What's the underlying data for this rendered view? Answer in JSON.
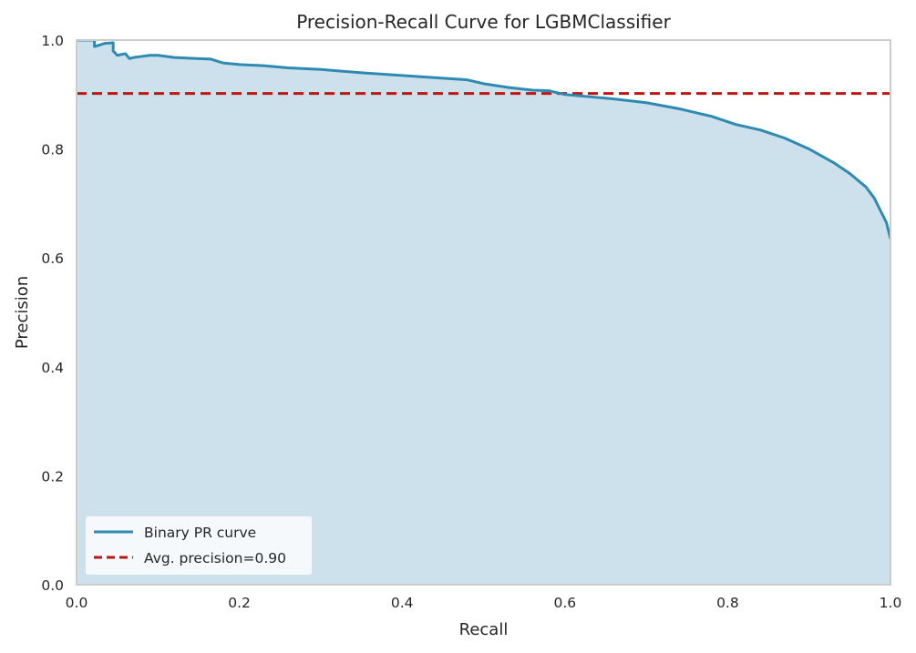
{
  "chart_data": {
    "type": "area",
    "title": "Precision-Recall Curve for LGBMClassifier",
    "xlabel": "Recall",
    "ylabel": "Precision",
    "xlim": [
      0.0,
      1.0
    ],
    "ylim": [
      0.0,
      1.0
    ],
    "xticks": [
      "0.0",
      "0.2",
      "0.4",
      "0.6",
      "0.8",
      "1.0"
    ],
    "yticks": [
      "0.0",
      "0.2",
      "0.4",
      "0.6",
      "0.8",
      "1.0"
    ],
    "grid": false,
    "legend": {
      "position": "lower-left",
      "entries": [
        "Binary PR curve",
        "Avg. precision=0.90"
      ]
    },
    "series": [
      {
        "name": "Binary PR curve",
        "color": "#2e8ab3",
        "fill_color": "#cce1ec",
        "x": [
          0.0,
          0.022,
          0.022,
          0.035,
          0.045,
          0.045,
          0.05,
          0.06,
          0.065,
          0.07,
          0.08,
          0.09,
          0.1,
          0.12,
          0.15,
          0.165,
          0.18,
          0.2,
          0.23,
          0.26,
          0.3,
          0.35,
          0.4,
          0.45,
          0.48,
          0.5,
          0.53,
          0.56,
          0.58,
          0.6,
          0.63,
          0.66,
          0.7,
          0.74,
          0.78,
          0.81,
          0.84,
          0.87,
          0.9,
          0.93,
          0.95,
          0.97,
          0.98,
          0.99,
          0.995,
          1.0
        ],
        "y": [
          1.0,
          1.0,
          0.988,
          0.994,
          0.995,
          0.98,
          0.972,
          0.975,
          0.966,
          0.968,
          0.97,
          0.972,
          0.972,
          0.968,
          0.966,
          0.965,
          0.958,
          0.955,
          0.953,
          0.949,
          0.946,
          0.94,
          0.935,
          0.93,
          0.927,
          0.92,
          0.913,
          0.908,
          0.907,
          0.9,
          0.896,
          0.892,
          0.885,
          0.874,
          0.86,
          0.845,
          0.835,
          0.82,
          0.8,
          0.775,
          0.755,
          0.73,
          0.71,
          0.68,
          0.665,
          0.635
        ]
      }
    ],
    "reference_lines": [
      {
        "name": "Avg. precision=0.90",
        "orientation": "horizontal",
        "y": 0.902,
        "style": "dashed",
        "color": "#c0140f"
      }
    ],
    "plot_background": "#ffffff",
    "frame_color": "#cccccc"
  }
}
